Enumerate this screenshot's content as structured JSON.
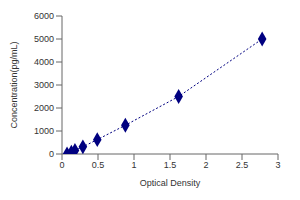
{
  "chart_data": {
    "type": "scatter",
    "x_label": "Optical Density",
    "y_label": "Concentration(pg/mL)",
    "x": [
      0.07,
      0.13,
      0.18,
      0.29,
      0.49,
      0.88,
      1.62,
      2.78
    ],
    "values": [
      0,
      78,
      156,
      312,
      625,
      1250,
      2500,
      5000
    ],
    "xlim": [
      0,
      3
    ],
    "xticks": [
      0,
      0.5,
      1,
      1.5,
      2,
      2.5,
      3
    ],
    "ylim": [
      0,
      6000
    ],
    "yticks": [
      0,
      1000,
      2000,
      3000,
      4000,
      5000,
      6000
    ],
    "color": "#000080",
    "marker": "diamond",
    "line_style": "dotted",
    "grid": false
  }
}
